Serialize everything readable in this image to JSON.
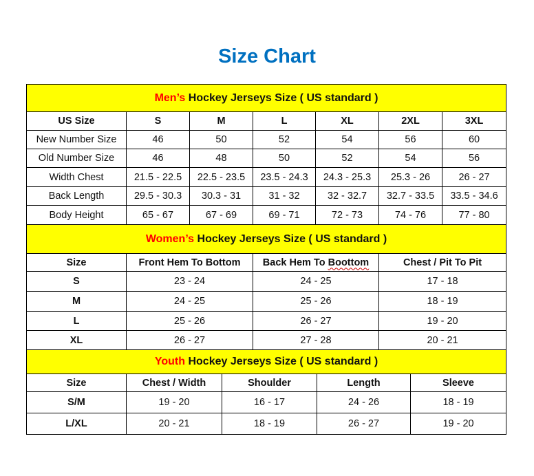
{
  "title": "Size Chart",
  "colors": {
    "title": "#0070C0",
    "section_bg": "#FFFF00",
    "highlight": "#FF0000"
  },
  "men": {
    "heading_highlight": "Men’s",
    "heading_rest": " Hockey Jerseys Size ( US standard )",
    "header": [
      "US Size",
      "S",
      "M",
      "L",
      "XL",
      "2XL",
      "3XL"
    ],
    "rows": [
      [
        "New Number Size",
        "46",
        "50",
        "52",
        "54",
        "56",
        "60"
      ],
      [
        "Old Number Size",
        "46",
        "48",
        "50",
        "52",
        "54",
        "56"
      ],
      [
        "Width Chest",
        "21.5 - 22.5",
        "22.5 - 23.5",
        "23.5 - 24.3",
        "24.3 - 25.3",
        "25.3 - 26",
        "26 - 27"
      ],
      [
        "Back Length",
        "29.5 - 30.3",
        "30.3 - 31",
        "31 - 32",
        "32 - 32.7",
        "32.7 - 33.5",
        "33.5 - 34.6"
      ],
      [
        "Body Height",
        "65 - 67",
        "67 - 69",
        "69 - 71",
        "72 - 73",
        "74 - 76",
        "77 - 80"
      ]
    ]
  },
  "women": {
    "heading_highlight": "Women’s",
    "heading_rest": " Hockey Jerseys Size ( US standard )",
    "header": [
      "Size",
      "Front Hem To Bottom",
      "Back Hem To Boottom",
      "Chest / Pit To Pit"
    ],
    "rows": [
      [
        "S",
        "23 - 24",
        "24 - 25",
        "17 - 18"
      ],
      [
        "M",
        "24 - 25",
        "25 - 26",
        "18 - 19"
      ],
      [
        "L",
        "25 - 26",
        "26 - 27",
        "19 - 20"
      ],
      [
        "XL",
        "26 - 27",
        "27 - 28",
        "20 - 21"
      ]
    ]
  },
  "youth": {
    "heading_highlight": "Youth",
    "heading_rest": " Hockey Jerseys Size ( US standard )",
    "header": [
      "Size",
      "Chest / Width",
      "Shoulder",
      "Length",
      "Sleeve"
    ],
    "rows": [
      [
        "S/M",
        "19 - 20",
        "16 - 17",
        "24 - 26",
        "18 - 19"
      ],
      [
        "L/XL",
        "20 - 21",
        "18 - 19",
        "26 - 27",
        "19 - 20"
      ]
    ]
  }
}
